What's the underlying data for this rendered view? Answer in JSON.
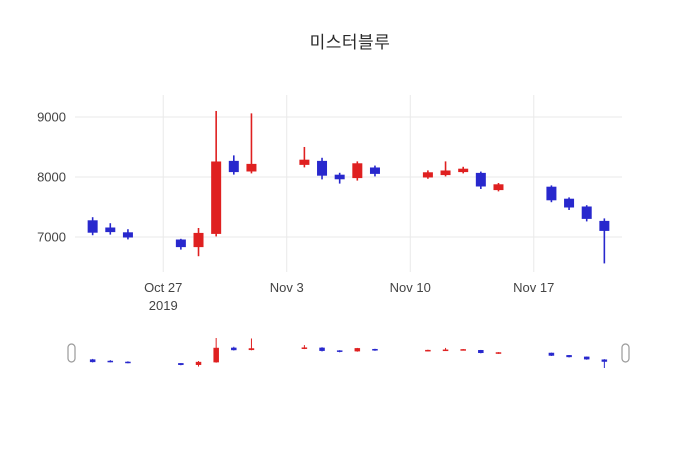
{
  "chart_data": {
    "type": "candlestick",
    "title": "미스터블루",
    "legend": "none",
    "grid": true,
    "colors": {
      "increasing": "#df2020",
      "decreasing": "#2828cd",
      "gridline": "#e9e9e9",
      "axis_text": "#444444",
      "handle_stroke": "#9a9a9a",
      "handle_fill": "#ffffff"
    },
    "yaxis": {
      "range": [
        6417,
        9366
      ],
      "ticks": [
        7000,
        8000,
        9000
      ]
    },
    "xaxis": {
      "range": [
        "2019-10-22",
        "2019-11-22"
      ],
      "ticks": [
        {
          "date": "2019-10-27",
          "label": "Oct 27",
          "sublabel": "2019"
        },
        {
          "date": "2019-11-03",
          "label": "Nov 3",
          "sublabel": ""
        },
        {
          "date": "2019-11-10",
          "label": "Nov 10",
          "sublabel": ""
        },
        {
          "date": "2019-11-17",
          "label": "Nov 17",
          "sublabel": ""
        }
      ]
    },
    "rangeslider": {
      "visible": true
    },
    "candles": [
      {
        "date": "2019-10-23",
        "open": 7270,
        "high": 7330,
        "low": 7030,
        "close": 7080
      },
      {
        "date": "2019-10-24",
        "open": 7150,
        "high": 7230,
        "low": 7040,
        "close": 7090
      },
      {
        "date": "2019-10-25",
        "open": 7070,
        "high": 7130,
        "low": 6960,
        "close": 7000
      },
      {
        "date": "2019-10-28",
        "open": 6950,
        "high": 6970,
        "low": 6790,
        "close": 6840
      },
      {
        "date": "2019-10-29",
        "open": 6840,
        "high": 7150,
        "low": 6680,
        "close": 7060
      },
      {
        "date": "2019-10-30",
        "open": 7060,
        "high": 9100,
        "low": 7010,
        "close": 8250
      },
      {
        "date": "2019-10-31",
        "open": 8260,
        "high": 8360,
        "low": 8040,
        "close": 8090
      },
      {
        "date": "2019-11-01",
        "open": 8100,
        "high": 9060,
        "low": 8060,
        "close": 8210
      },
      {
        "date": "2019-11-04",
        "open": 8210,
        "high": 8500,
        "low": 8160,
        "close": 8280
      },
      {
        "date": "2019-11-05",
        "open": 8260,
        "high": 8320,
        "low": 7960,
        "close": 8030
      },
      {
        "date": "2019-11-06",
        "open": 8030,
        "high": 8070,
        "low": 7890,
        "close": 7970
      },
      {
        "date": "2019-11-07",
        "open": 7990,
        "high": 8260,
        "low": 7940,
        "close": 8220
      },
      {
        "date": "2019-11-08",
        "open": 8150,
        "high": 8190,
        "low": 8010,
        "close": 8060
      },
      {
        "date": "2019-11-11",
        "open": 8000,
        "high": 8110,
        "low": 7970,
        "close": 8070
      },
      {
        "date": "2019-11-12",
        "open": 8040,
        "high": 8260,
        "low": 8010,
        "close": 8100
      },
      {
        "date": "2019-11-13",
        "open": 8090,
        "high": 8170,
        "low": 8060,
        "close": 8130
      },
      {
        "date": "2019-11-14",
        "open": 8060,
        "high": 8090,
        "low": 7800,
        "close": 7850
      },
      {
        "date": "2019-11-15",
        "open": 7790,
        "high": 7900,
        "low": 7760,
        "close": 7870
      },
      {
        "date": "2019-11-18",
        "open": 7830,
        "high": 7860,
        "low": 7580,
        "close": 7620
      },
      {
        "date": "2019-11-19",
        "open": 7630,
        "high": 7660,
        "low": 7450,
        "close": 7500
      },
      {
        "date": "2019-11-20",
        "open": 7500,
        "high": 7530,
        "low": 7260,
        "close": 7310
      },
      {
        "date": "2019-11-21",
        "open": 7260,
        "high": 7310,
        "low": 6560,
        "close": 7110
      }
    ]
  }
}
